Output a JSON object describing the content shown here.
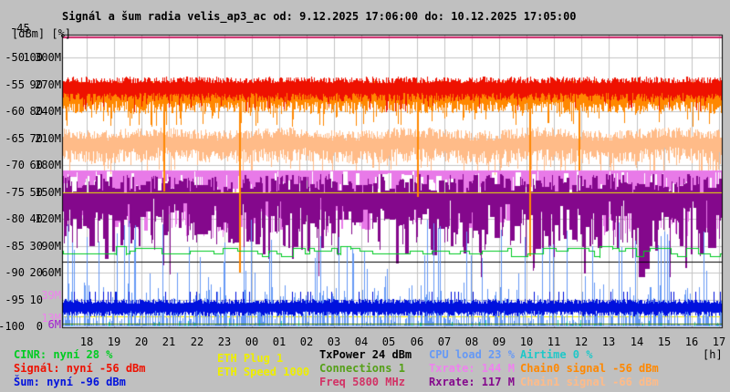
{
  "title": "Signál a šum radia velis_ap3_ac od: 9.12.2025 17:06:00 do: 10.12.2025 17:05:00",
  "axis": {
    "unit_label": "[dBm] [%]",
    "top_label": "-45",
    "hour_unit": "[h]",
    "rows": [
      {
        "dbm": "-50",
        "pct": "100",
        "mbit": "300M"
      },
      {
        "dbm": "-55",
        "pct": "90",
        "mbit": "270M"
      },
      {
        "dbm": "-60",
        "pct": "80",
        "mbit": "240M"
      },
      {
        "dbm": "-65",
        "pct": "70",
        "mbit": "210M"
      },
      {
        "dbm": "-70",
        "pct": "60",
        "mbit": "180M"
      },
      {
        "dbm": "-75",
        "pct": "50",
        "mbit": "150M"
      },
      {
        "dbm": "-80",
        "pct": "40",
        "mbit": "120M"
      },
      {
        "dbm": "-85",
        "pct": "30",
        "mbit": "90M"
      },
      {
        "dbm": "-90",
        "pct": "20",
        "mbit": "60M"
      },
      {
        "dbm": "-95",
        "pct": "10",
        "mbit": ""
      },
      {
        "dbm": "-100",
        "pct": "0",
        "mbit": ""
      }
    ]
  },
  "legend": {
    "hour_unit": "[h]",
    "columns": [
      {
        "items": [
          {
            "id": "cinr",
            "text": "CINR: nyní 28 %",
            "color": "#00cc22"
          },
          {
            "id": "signal",
            "text": "Signál: nyní -56 dBm",
            "color": "#ee1100"
          },
          {
            "id": "sum",
            "text": "Šum: nyní -96 dBm",
            "color": "#0011dd"
          }
        ]
      },
      {
        "items": [
          {
            "id": "eth-plug",
            "text": "ETH Plug 1",
            "color": "#eeee00"
          },
          {
            "id": "eth-speed",
            "text": "ETH Speed 1000",
            "color": "#eeee00"
          }
        ]
      },
      {
        "items": [
          {
            "id": "txpower",
            "text": "TxPower 24 dBm",
            "color": "#000000"
          },
          {
            "id": "connections",
            "text": "Connections 1",
            "color": "#55a018"
          },
          {
            "id": "freq",
            "text": "Freq 5800 MHz",
            "color": "#d23265"
          }
        ]
      },
      {
        "items": [
          {
            "id": "cpu",
            "text": "CPU load 23 %",
            "color": "#6699f5"
          },
          {
            "id": "txrate",
            "text": "Txrate: 144 M",
            "color": "#ee82ee"
          },
          {
            "id": "rxrate",
            "text": "Rxrate: 117 M",
            "color": "#84088c"
          }
        ]
      },
      {
        "items": [
          {
            "id": "airtime",
            "text": "Airtime 0 %",
            "color": "#1fc8c8"
          },
          {
            "id": "chain0",
            "text": "Chain0 signal -56 dBm",
            "color": "#ff8800"
          },
          {
            "id": "chain1",
            "text": "Chain1 signal -66 dBm",
            "color": "#ffbb88"
          }
        ]
      }
    ]
  },
  "chart_data": {
    "type": "line",
    "title": "Signál a šum radia velis_ap3_ac",
    "time_from": "9.12.2025 17:06:00",
    "time_to": "10.12.2025 17:05:00",
    "x_hours": [
      "18",
      "19",
      "20",
      "21",
      "22",
      "23",
      "00",
      "01",
      "02",
      "03",
      "04",
      "05",
      "06",
      "07",
      "08",
      "09",
      "10",
      "11",
      "12",
      "13",
      "14",
      "15",
      "16",
      "17"
    ],
    "axes": {
      "dbm_range": [
        -100,
        -45
      ],
      "pct_range": [
        0,
        100
      ],
      "mbit_range": [
        0,
        300
      ],
      "grid": true
    },
    "series": [
      {
        "name": "Signál",
        "color": "#ee1100",
        "scale": "dbm",
        "current": -56,
        "typical": -56,
        "range": [
          -62,
          -53
        ]
      },
      {
        "name": "Chain0 signal",
        "color": "#ff8800",
        "scale": "dbm",
        "current": -56,
        "typical": -57,
        "range": [
          -64,
          -54
        ],
        "fade_events": [
          {
            "hour_offset": 3.7,
            "dbm": -75
          },
          {
            "hour_offset": 6.45,
            "dbm": -90
          },
          {
            "hour_offset": 12.9,
            "dbm": -76
          },
          {
            "hour_offset": 17.0,
            "dbm": -87
          },
          {
            "hour_offset": 18.8,
            "dbm": -71
          }
        ]
      },
      {
        "name": "Chain1 signal",
        "color": "#ffbb88",
        "scale": "dbm",
        "current": -66,
        "typical": -66,
        "range": [
          -71,
          -62
        ]
      },
      {
        "name": "Šum",
        "color": "#0011dd",
        "scale": "dbm",
        "current": -96,
        "typical": -96.3,
        "range": [
          -98,
          -93.5
        ]
      },
      {
        "name": "CINR",
        "color": "#00cc22",
        "scale": "pct",
        "current": 28,
        "typical": 28,
        "range": [
          24,
          30
        ]
      },
      {
        "name": "CPU load",
        "color": "#6699f5",
        "scale": "pct",
        "current": 23,
        "typical": 5,
        "range": [
          0,
          40
        ]
      },
      {
        "name": "Airtime",
        "color": "#1fc8c8",
        "scale": "pct",
        "current": 0,
        "typical": 0,
        "range": [
          0,
          3
        ]
      },
      {
        "name": "Txrate",
        "color": "#e87ae8",
        "scale": "mbit",
        "current": 144,
        "typical": 160,
        "range": [
          90,
          174
        ],
        "ceiling": 174
      },
      {
        "name": "Rxrate",
        "color": "#84088c",
        "scale": "mbit",
        "current": 117,
        "typical": 130,
        "range": [
          55,
          170
        ]
      }
    ],
    "reference_lines": [
      {
        "name": "Freq",
        "color": "#cc2266",
        "at_dbm": -46.3
      },
      {
        "name": "TxPower",
        "color": "#000000",
        "at_pct": 24
      },
      {
        "name": "eth-upper",
        "color": "#eeee00",
        "at_pct": 50
      },
      {
        "name": "eth-lower",
        "color": "#eeee00",
        "at_mbit": 12
      },
      {
        "name": "Connections",
        "color": "#3f7a00",
        "at_pct": 1
      }
    ],
    "markers": [
      {
        "text": "39M",
        "at_mbit": 39,
        "color": "#ee82ee"
      },
      {
        "text": "13M",
        "at_mbit": 13,
        "color": "#ee82ee"
      },
      {
        "text": "6M",
        "at_mbit": 6,
        "color": "#a020d0"
      }
    ]
  }
}
